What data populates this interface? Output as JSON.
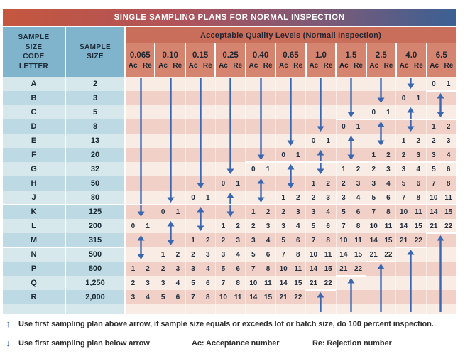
{
  "chart_data": {
    "type": "table",
    "title": "SINGLE SAMPLING PLANS FOR NORMAL INSPECTION",
    "aql_band_label": "Acceptable Quality Levels (Normail Inspection)",
    "col1_header": "SAMPLE\nSIZE\nCODE\nLETTER",
    "col2_header": "SAMPLE\nSIZE",
    "aql_levels": [
      "0.065",
      "0.10",
      "0.15",
      "0.25",
      "0.40",
      "0.65",
      "1.0",
      "1.5",
      "2.5",
      "4.0",
      "6.5"
    ],
    "ac_label": "Ac",
    "re_label": "Re",
    "rows": [
      {
        "letter": "A",
        "size": "2",
        "cells": [
          "",
          "",
          "",
          "",
          "",
          "",
          "",
          "",
          "",
          "",
          "0 1"
        ]
      },
      {
        "letter": "B",
        "size": "3",
        "cells": [
          "",
          "",
          "",
          "",
          "",
          "",
          "",
          "",
          "",
          "0 1",
          ""
        ]
      },
      {
        "letter": "C",
        "size": "5",
        "cells": [
          "",
          "",
          "",
          "",
          "",
          "",
          "",
          "",
          "0 1",
          "",
          ""
        ]
      },
      {
        "letter": "D",
        "size": "8",
        "cells": [
          "",
          "",
          "",
          "",
          "",
          "",
          "",
          "0 1",
          "",
          "",
          "1 2"
        ]
      },
      {
        "letter": "E",
        "size": "13",
        "cells": [
          "",
          "",
          "",
          "",
          "",
          "",
          "0 1",
          "",
          "",
          "1 2",
          "2 3"
        ]
      },
      {
        "letter": "F",
        "size": "20",
        "cells": [
          "",
          "",
          "",
          "",
          "",
          "0 1",
          "",
          "",
          "1 2",
          "2 3",
          "3 4"
        ]
      },
      {
        "letter": "G",
        "size": "32",
        "cells": [
          "",
          "",
          "",
          "",
          "0 1",
          "",
          "",
          "1 2",
          "2 3",
          "3 4",
          "5 6"
        ]
      },
      {
        "letter": "H",
        "size": "50",
        "cells": [
          "",
          "",
          "",
          "0 1",
          "",
          "",
          "1 2",
          "2 3",
          "3 4",
          "5 6",
          "7 8"
        ]
      },
      {
        "letter": "J",
        "size": "80",
        "cells": [
          "",
          "",
          "0 1",
          "",
          "",
          "1 2",
          "2 3",
          "3 4",
          "5 6",
          "7 8",
          "10 11"
        ]
      },
      {
        "letter": "K",
        "size": "125",
        "cells": [
          "",
          "0 1",
          "",
          "",
          "1 2",
          "2 3",
          "3 4",
          "5 6",
          "7 8",
          "10 11",
          "14 15"
        ]
      },
      {
        "letter": "L",
        "size": "200",
        "cells": [
          "0 1",
          "",
          "",
          "1 2",
          "2 3",
          "3 4",
          "5 6",
          "7 8",
          "10 11",
          "14 15",
          "21 22"
        ]
      },
      {
        "letter": "M",
        "size": "315",
        "cells": [
          "",
          "",
          "1 2",
          "2 3",
          "3 4",
          "5 6",
          "7 8",
          "10 11",
          "14 15",
          "21 22",
          ""
        ]
      },
      {
        "letter": "N",
        "size": "500",
        "cells": [
          "",
          "1 2",
          "2 3",
          "3 4",
          "5 6",
          "7 8",
          "10 11",
          "14 15",
          "21 22",
          "",
          ""
        ]
      },
      {
        "letter": "P",
        "size": "800",
        "cells": [
          "1 2",
          "2 3",
          "3 4",
          "5 6",
          "7 8",
          "10 11",
          "14 15",
          "21 22",
          "",
          "",
          ""
        ]
      },
      {
        "letter": "Q",
        "size": "1,250",
        "cells": [
          "2 3",
          "3 4",
          "5 6",
          "7 8",
          "10 11",
          "14 15",
          "21 22",
          "",
          "",
          "",
          ""
        ]
      },
      {
        "letter": "R",
        "size": "2,000",
        "cells": [
          "3 4",
          "5 6",
          "7 8",
          "10 11",
          "14 15",
          "21 22",
          "",
          "",
          "",
          "",
          ""
        ]
      }
    ],
    "arrows": [
      {
        "col": 9,
        "from": "A",
        "to": "A",
        "dir": "down"
      },
      {
        "col": 8,
        "from": "A",
        "to": "B",
        "dir": "down"
      },
      {
        "col": 7,
        "from": "A",
        "to": "C",
        "dir": "down"
      },
      {
        "col": 6,
        "from": "A",
        "to": "D",
        "dir": "down"
      },
      {
        "col": 5,
        "from": "A",
        "to": "E",
        "dir": "down"
      },
      {
        "col": 4,
        "from": "A",
        "to": "F",
        "dir": "down"
      },
      {
        "col": 3,
        "from": "A",
        "to": "G",
        "dir": "down"
      },
      {
        "col": 2,
        "from": "A",
        "to": "H",
        "dir": "down"
      },
      {
        "col": 1,
        "from": "A",
        "to": "J",
        "dir": "down"
      },
      {
        "col": 0,
        "from": "A",
        "to": "K",
        "dir": "down"
      },
      {
        "col": 10,
        "from": "B",
        "to": "C",
        "dir": "both"
      },
      {
        "col": 9,
        "from": "C",
        "to": "D",
        "dir": "both"
      },
      {
        "col": 8,
        "from": "D",
        "to": "E",
        "dir": "both"
      },
      {
        "col": 7,
        "from": "E",
        "to": "F",
        "dir": "both"
      },
      {
        "col": 6,
        "from": "F",
        "to": "G",
        "dir": "both"
      },
      {
        "col": 5,
        "from": "G",
        "to": "H",
        "dir": "both"
      },
      {
        "col": 4,
        "from": "H",
        "to": "J",
        "dir": "both"
      },
      {
        "col": 3,
        "from": "J",
        "to": "K",
        "dir": "both"
      },
      {
        "col": 2,
        "from": "K",
        "to": "L",
        "dir": "both"
      },
      {
        "col": 1,
        "from": "L",
        "to": "M",
        "dir": "both"
      },
      {
        "col": 0,
        "from": "M",
        "to": "N",
        "dir": "both"
      },
      {
        "col": 6,
        "from": "R",
        "to": "R",
        "dir": "up"
      },
      {
        "col": 7,
        "from": "Q",
        "to": "R",
        "dir": "up"
      },
      {
        "col": 8,
        "from": "P",
        "to": "R",
        "dir": "up"
      },
      {
        "col": 9,
        "from": "N",
        "to": "R",
        "dir": "up"
      },
      {
        "col": 10,
        "from": "M",
        "to": "R",
        "dir": "up"
      }
    ],
    "separators": [
      {
        "below_row": "A",
        "from_col": 10,
        "to_col": 10
      },
      {
        "below_row": "C",
        "from_col": 7,
        "to_col": 10
      },
      {
        "below_row": "F",
        "from_col": 4,
        "to_col": 10
      },
      {
        "below_row": "J",
        "from_col": -2,
        "to_col": 10
      },
      {
        "below_row": "M",
        "from_col": -2,
        "to_col": -1
      },
      {
        "below_row": "L",
        "from_col": 10,
        "to_col": 10
      },
      {
        "below_row": "M",
        "from_col": 9,
        "to_col": 9
      },
      {
        "below_row": "N",
        "from_col": 8,
        "to_col": 8
      },
      {
        "below_row": "P",
        "from_col": 7,
        "to_col": 7
      },
      {
        "below_row": "Q",
        "from_col": 6,
        "to_col": 6
      }
    ],
    "footnotes": {
      "up_note": "Use first sampling plan above arrow, if sample size equals or exceeds lot or batch size, do 100 percent inspection.",
      "down_note": "Use first sampling plan below arrow",
      "ac_def": "Ac: Acceptance number",
      "re_def": "Re: Rejection number",
      "up_glyph": "↑",
      "down_glyph": "↓"
    },
    "colors": {
      "arrow": "#3a67b0",
      "title_gradient_left": "#c4573e",
      "title_gradient_right": "#3b6094",
      "band_bg": "#c96e5b",
      "aql_header_cell_bg": "#d5846f",
      "header_blue": "#7fb4cc",
      "row_blue_light": "#d7e8ed",
      "row_blue_dark": "#bddae4",
      "row_pink_light": "#f9ece5",
      "row_pink_dark": "#f1d1c7"
    }
  }
}
